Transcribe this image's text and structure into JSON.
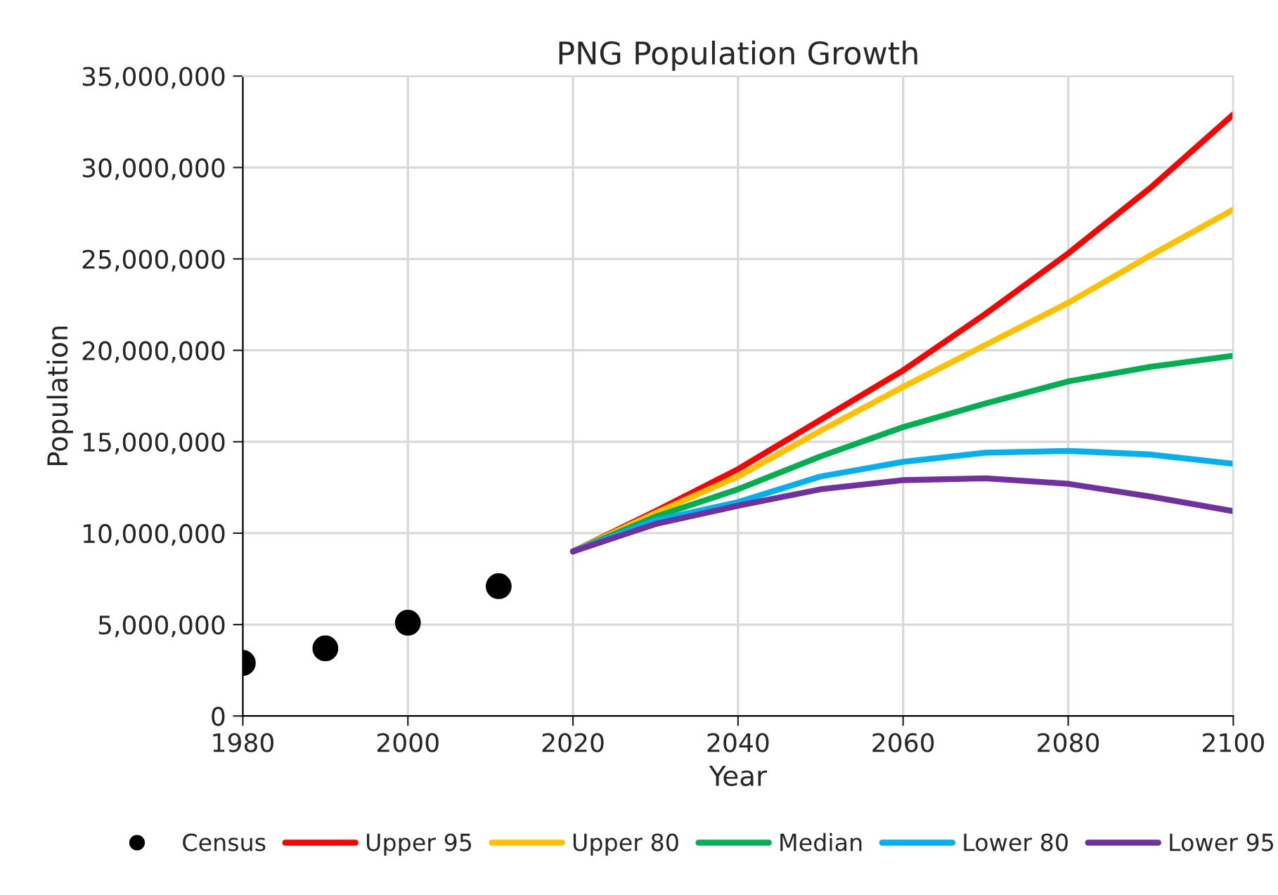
{
  "chart_data": {
    "type": "line",
    "title": "PNG Population Growth",
    "xlabel": "Year",
    "ylabel": "Population",
    "xlim": [
      1980,
      2100
    ],
    "xticks": [
      1980,
      2000,
      2020,
      2040,
      2060,
      2080,
      2100
    ],
    "ylim": [
      0,
      35000000
    ],
    "yticks": [
      {
        "value": 0,
        "label": "0"
      },
      {
        "value": 5000000,
        "label": "5,000,000"
      },
      {
        "value": 10000000,
        "label": "10,000,000"
      },
      {
        "value": 15000000,
        "label": "15,000,000"
      },
      {
        "value": 20000000,
        "label": "20,000,000"
      },
      {
        "value": 25000000,
        "label": "25,000,000"
      },
      {
        "value": 30000000,
        "label": "30,000,000"
      },
      {
        "value": 35000000,
        "label": "35,000,000"
      }
    ],
    "grid": true,
    "legend": "bottom",
    "series": [
      {
        "name": "Census",
        "type": "scatter",
        "marker": "circle",
        "color": "#000000",
        "x": [
          1980,
          1990,
          2000,
          2011
        ],
        "values": [
          2900000,
          3700000,
          5100000,
          7100000
        ]
      },
      {
        "name": "Upper 95",
        "color": "#ff0000",
        "x": [
          2020,
          2030,
          2040,
          2050,
          2060,
          2070,
          2080,
          2090,
          2100
        ],
        "values": [
          9000000,
          11200000,
          13500000,
          16200000,
          18900000,
          22000000,
          25300000,
          28900000,
          32900000
        ]
      },
      {
        "name": "Upper 80",
        "color": "#ffc000",
        "x": [
          2020,
          2030,
          2040,
          2050,
          2060,
          2070,
          2080,
          2090,
          2100
        ],
        "values": [
          9000000,
          11100000,
          13100000,
          15600000,
          18000000,
          20300000,
          22600000,
          25200000,
          27700000
        ]
      },
      {
        "name": "Median",
        "color": "#00b050",
        "x": [
          2020,
          2030,
          2040,
          2050,
          2060,
          2070,
          2080,
          2090,
          2100
        ],
        "values": [
          9000000,
          10900000,
          12400000,
          14200000,
          15800000,
          17100000,
          18300000,
          19100000,
          19700000
        ]
      },
      {
        "name": "Lower 80",
        "color": "#00b0f0",
        "x": [
          2020,
          2030,
          2040,
          2050,
          2060,
          2070,
          2080,
          2090,
          2100
        ],
        "values": [
          9000000,
          10700000,
          11700000,
          13100000,
          13900000,
          14400000,
          14500000,
          14300000,
          13800000
        ]
      },
      {
        "name": "Lower 95",
        "color": "#7030a0",
        "x": [
          2020,
          2030,
          2040,
          2050,
          2060,
          2070,
          2080,
          2090,
          2100
        ],
        "values": [
          9000000,
          10500000,
          11500000,
          12400000,
          12900000,
          13000000,
          12700000,
          12000000,
          11200000
        ]
      }
    ]
  }
}
